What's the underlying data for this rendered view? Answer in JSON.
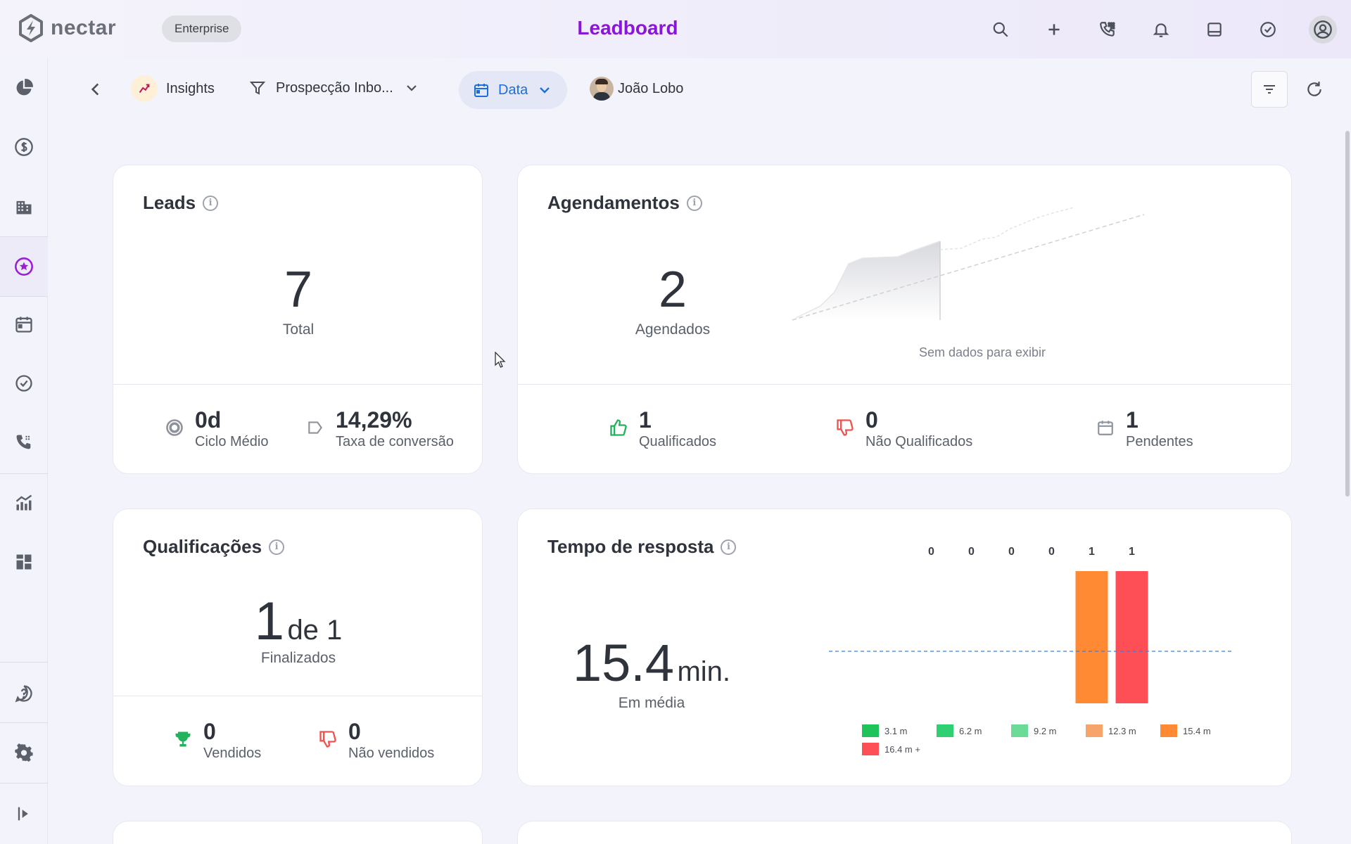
{
  "topbar": {
    "logo_text": "nectar",
    "plan_badge": "Enterprise",
    "title": "Leadboard",
    "icons": [
      "search-icon",
      "plus-icon",
      "phone-dial-icon",
      "bell-icon",
      "inbox-icon",
      "check-circle-icon",
      "user-avatar-icon"
    ]
  },
  "sidebar": {
    "items": [
      "pie-chart-icon",
      "dollar-icon",
      "building-icon",
      "star-icon",
      "calendar-icon",
      "check-circle-icon",
      "phone-icon",
      "analytics-icon",
      "dashboard-icon",
      "help-icon",
      "settings-icon",
      "expand-icon"
    ],
    "active": "star-icon"
  },
  "toolbar": {
    "insights_label": "Insights",
    "pipeline_label": "Prospecção Inbo...",
    "date_label": "Data",
    "user_label": "João Lobo"
  },
  "leads": {
    "title": "Leads",
    "total": "7",
    "total_label": "Total",
    "cycle_value": "0d",
    "cycle_label": "Ciclo Médio",
    "conversion_value": "14,29%",
    "conversion_label": "Taxa de conversão"
  },
  "agendamentos": {
    "title": "Agendamentos",
    "value": "2",
    "value_label": "Agendados",
    "empty_message": "Sem dados para exibir",
    "qualified_value": "1",
    "qualified_label": "Qualificados",
    "not_qualified_value": "0",
    "not_qualified_label": "Não Qualificados",
    "pending_value": "1",
    "pending_label": "Pendentes"
  },
  "qualificacoes": {
    "title": "Qualificações",
    "value": "1",
    "of_label": "de 1",
    "value_label": "Finalizados",
    "sold_value": "0",
    "sold_label": "Vendidos",
    "not_sold_value": "0",
    "not_sold_label": "Não vendidos"
  },
  "tempo": {
    "title": "Tempo de resposta",
    "value": "15.4",
    "unit": "min.",
    "value_label": "Em média"
  },
  "chart_data": {
    "type": "bar",
    "categories": [
      "3.1 m",
      "6.2 m",
      "9.2 m",
      "12.3 m",
      "15.4 m",
      "16.4 m +"
    ],
    "values": [
      0,
      0,
      0,
      0,
      1,
      1
    ],
    "colors": [
      "#1ec45a",
      "#2fd072",
      "#6cdb98",
      "#f6a46a",
      "#ff8a33",
      "#ff4f56"
    ],
    "average_line": 15.4,
    "legend": [
      "3.1 m",
      "6.2 m",
      "9.2 m",
      "12.3 m",
      "15.4 m",
      "16.4 m +"
    ]
  }
}
